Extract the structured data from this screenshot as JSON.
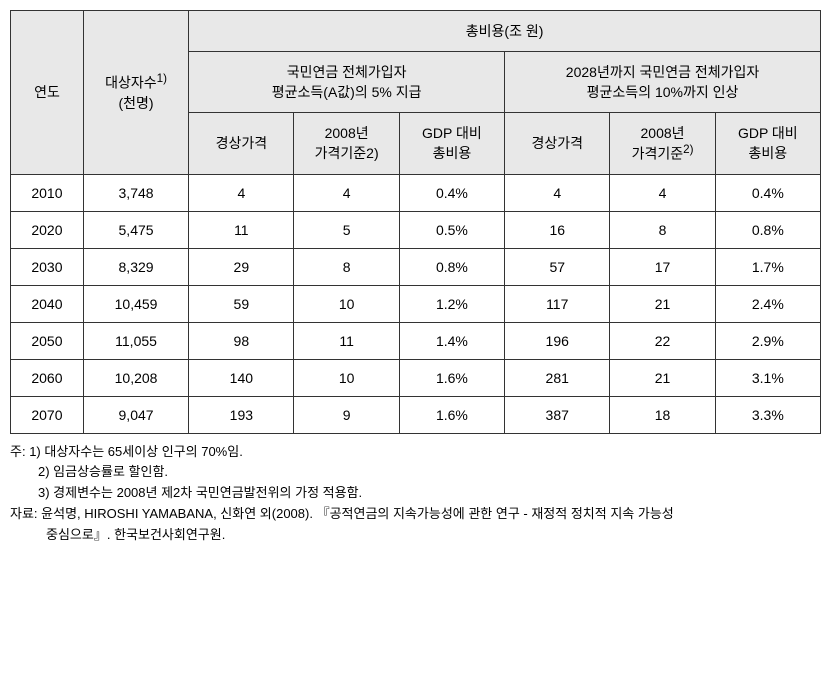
{
  "table": {
    "headers": {
      "year": "연도",
      "subjects": "대상자수",
      "subjects_sup": "1)",
      "subjects_unit": "(천명)",
      "total_cost": "총비용(조 원)",
      "group1": "국민연금 전체가입자\n평균소득(A값)의 5% 지급",
      "group2": "2028년까지 국민연금 전체가입자\n평균소득의 10%까지 인상",
      "sub_current": "경상가격",
      "sub_2008": "2008년\n가격기준",
      "sub_2008_sup_a": "2)",
      "sub_2008_sup_b": "2)",
      "sub_gdp": "GDP 대비\n총비용"
    },
    "rows": [
      {
        "year": "2010",
        "count": "3,748",
        "g1_current": "4",
        "g1_2008": "4",
        "g1_gdp": "0.4%",
        "g2_current": "4",
        "g2_2008": "4",
        "g2_gdp": "0.4%"
      },
      {
        "year": "2020",
        "count": "5,475",
        "g1_current": "11",
        "g1_2008": "5",
        "g1_gdp": "0.5%",
        "g2_current": "16",
        "g2_2008": "8",
        "g2_gdp": "0.8%"
      },
      {
        "year": "2030",
        "count": "8,329",
        "g1_current": "29",
        "g1_2008": "8",
        "g1_gdp": "0.8%",
        "g2_current": "57",
        "g2_2008": "17",
        "g2_gdp": "1.7%"
      },
      {
        "year": "2040",
        "count": "10,459",
        "g1_current": "59",
        "g1_2008": "10",
        "g1_gdp": "1.2%",
        "g2_current": "117",
        "g2_2008": "21",
        "g2_gdp": "2.4%"
      },
      {
        "year": "2050",
        "count": "11,055",
        "g1_current": "98",
        "g1_2008": "11",
        "g1_gdp": "1.4%",
        "g2_current": "196",
        "g2_2008": "22",
        "g2_gdp": "2.9%"
      },
      {
        "year": "2060",
        "count": "10,208",
        "g1_current": "140",
        "g1_2008": "10",
        "g1_gdp": "1.6%",
        "g2_current": "281",
        "g2_2008": "21",
        "g2_gdp": "3.1%"
      },
      {
        "year": "2070",
        "count": "9,047",
        "g1_current": "193",
        "g1_2008": "9",
        "g1_gdp": "1.6%",
        "g2_current": "387",
        "g2_2008": "18",
        "g2_gdp": "3.3%"
      }
    ]
  },
  "notes": {
    "note_prefix": "주: ",
    "n1": "1) 대상자수는 65세이상 인구의 70%임.",
    "n2": "2) 임금상승률로 할인함.",
    "n3": "3) 경제변수는 2008년 제2차 국민연금발전위의 가정 적용함.",
    "source_prefix": "자료: ",
    "source1": "윤석명, HIROSHI YAMABANA, 신화연 외(2008). 『공적연금의 지속가능성에 관한 연구 - 재정적 정치적 지속 가능성",
    "source2": "중심으로』. 한국보건사회연구원."
  }
}
